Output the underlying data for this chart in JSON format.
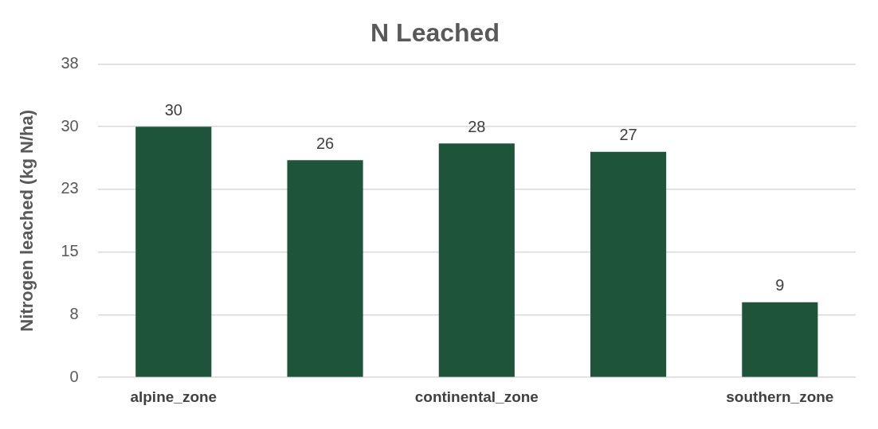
{
  "chart_data": {
    "type": "bar",
    "title": "N Leached",
    "ylabel": "Nitrogen leached (kg N/ha)",
    "categories": [
      "alpine_zone",
      null,
      "continental_zone",
      null,
      "southern_zone"
    ],
    "values": [
      30,
      26,
      28,
      27,
      9
    ],
    "color": "#1e5439",
    "ylim": [
      0,
      37.5
    ],
    "yticks": [
      0,
      {
        "value": 7.5,
        "label": "8"
      },
      15,
      {
        "value": 22.5,
        "label": "23"
      },
      30,
      {
        "value": 37.5,
        "label": "38"
      }
    ],
    "grid": "y",
    "legend": false,
    "data_labels": true
  }
}
